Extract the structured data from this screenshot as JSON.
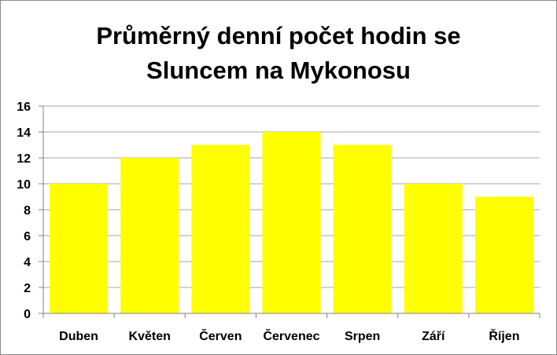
{
  "chart_data": {
    "type": "bar",
    "title_lines": [
      "Průměrný denní počet hodin se",
      "Sluncem na Mykonosu"
    ],
    "categories": [
      "Duben",
      "Květen",
      "Červen",
      "Červenec",
      "Srpen",
      "Září",
      "Říjen"
    ],
    "values": [
      10,
      12,
      13,
      14,
      13,
      10,
      9
    ],
    "ylim": [
      0,
      16
    ],
    "yticks": [
      0,
      2,
      4,
      6,
      8,
      10,
      12,
      14,
      16
    ],
    "grid": true,
    "legend": "none",
    "bar_color": "#ffff00",
    "grid_color": "#a6a6a6",
    "axis_color": "#808080"
  }
}
